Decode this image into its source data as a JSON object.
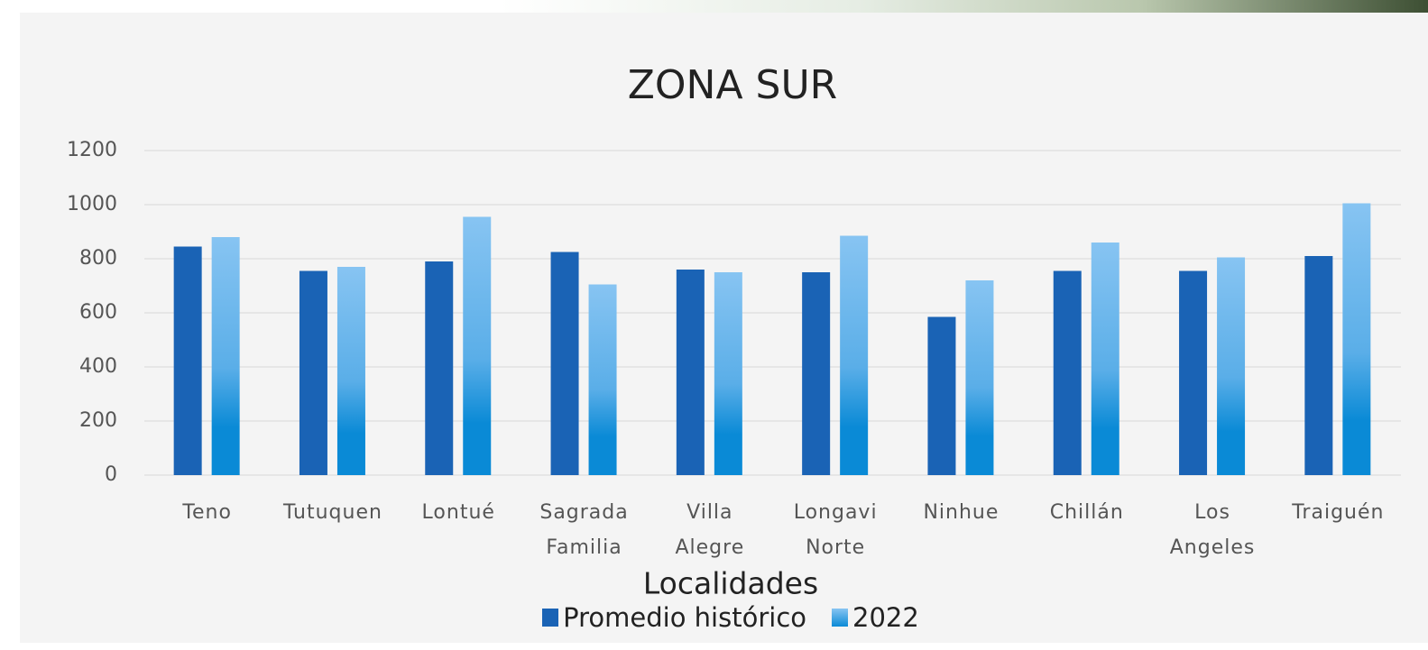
{
  "chart_data": {
    "type": "bar",
    "title": "ZONA SUR",
    "x_label": "Localidades",
    "categories": [
      "Teno",
      "Tutuquen",
      "Lontué",
      "Sagrada Familia",
      "Villa Alegre",
      "Longavi Norte",
      "Ninhue",
      "Chillán",
      "Los Angeles",
      "Traiguén"
    ],
    "series": [
      {
        "name": "Promedio histórico",
        "color": "#1a63b5",
        "values": [
          845,
          755,
          790,
          825,
          760,
          750,
          585,
          755,
          755,
          810
        ]
      },
      {
        "name": "2022",
        "color": "#87c4f2",
        "values": [
          880,
          770,
          955,
          705,
          750,
          885,
          720,
          860,
          805,
          1005
        ]
      }
    ],
    "ylim": [
      0,
      1200
    ],
    "yticks": [
      0,
      200,
      400,
      600,
      800,
      1000,
      1200
    ],
    "grid": true
  }
}
